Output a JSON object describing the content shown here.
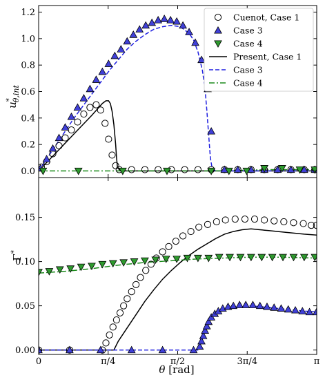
{
  "chart_data": {
    "type": "line",
    "xlabel": "θ [rad]",
    "x_ticks": [
      {
        "value": 0,
        "label": "0"
      },
      {
        "value": 0.7854,
        "label": "π/4"
      },
      {
        "value": 1.5708,
        "label": "π/2"
      },
      {
        "value": 2.3562,
        "label": "3π/4"
      },
      {
        "value": 3.1416,
        "label": "π"
      }
    ],
    "xlim": [
      0,
      3.1416
    ],
    "legend": {
      "placement": "top-right",
      "entries": [
        {
          "label": "Cuenot, Case 1",
          "marker": "circle-open"
        },
        {
          "label": "Case 3",
          "marker": "triangle-up"
        },
        {
          "label": "Case 4",
          "marker": "triangle-down"
        },
        {
          "label": "Present, Case 1",
          "line": "solid"
        },
        {
          "label": "Case 3",
          "line": "dashed"
        },
        {
          "label": "Case 4",
          "line": "dashdot"
        }
      ]
    },
    "colors": {
      "case1": "#000000",
      "case3_line": "#1f1fe0",
      "case3_marker": "#4040d8",
      "case4_line": "#1a8a1a",
      "case4_marker": "#2e9a2e"
    },
    "panels": [
      {
        "id": "top",
        "ylabel": "u*θ,int",
        "ylim": [
          -0.05,
          1.25
        ],
        "y_ticks": [
          0.0,
          0.2,
          0.4,
          0.6,
          0.8,
          1.0,
          1.2
        ],
        "y_tick_labels": [
          "0.0",
          "0.2",
          "0.4",
          "0.6",
          "0.8",
          "1.0",
          "1.2"
        ],
        "series": [
          {
            "name": "Cuenot, Case 1",
            "kind": "marker",
            "marker": "circle-open",
            "color": "#000000",
            "x": [
              0.03,
              0.09,
              0.16,
              0.23,
              0.3,
              0.37,
              0.44,
              0.51,
              0.58,
              0.65,
              0.7,
              0.75,
              0.79,
              0.83,
              0.87,
              0.91,
              1.05,
              1.2,
              1.35,
              1.5,
              1.65,
              1.8,
              1.95,
              2.1,
              2.25,
              2.4,
              2.55,
              2.7,
              2.85,
              3.0,
              3.12
            ],
            "y": [
              0.03,
              0.07,
              0.13,
              0.19,
              0.25,
              0.31,
              0.37,
              0.43,
              0.48,
              0.5,
              0.46,
              0.36,
              0.24,
              0.12,
              0.04,
              0.01,
              0.01,
              0.01,
              0.01,
              0.01,
              0.01,
              0.01,
              0.01,
              0.01,
              0.01,
              0.01,
              0.01,
              0.01,
              0.01,
              0.01,
              0.01
            ]
          },
          {
            "name": "Case 3",
            "kind": "marker",
            "marker": "triangle-up",
            "color": "#4040d8",
            "x": [
              0.02,
              0.09,
              0.16,
              0.23,
              0.3,
              0.37,
              0.44,
              0.51,
              0.58,
              0.65,
              0.72,
              0.79,
              0.86,
              0.93,
              1.0,
              1.07,
              1.14,
              1.21,
              1.28,
              1.35,
              1.42,
              1.49,
              1.56,
              1.63,
              1.7,
              1.77,
              1.84,
              1.91,
              1.95,
              2.1,
              2.25,
              2.4,
              2.55,
              2.7,
              2.85,
              3.0,
              3.12
            ],
            "y": [
              0.02,
              0.09,
              0.17,
              0.25,
              0.33,
              0.41,
              0.48,
              0.55,
              0.62,
              0.69,
              0.75,
              0.81,
              0.87,
              0.92,
              0.98,
              1.03,
              1.07,
              1.1,
              1.12,
              1.14,
              1.15,
              1.14,
              1.13,
              1.1,
              1.05,
              0.97,
              0.84,
              0.62,
              0.3,
              0.01,
              0.01,
              0.01,
              0.01,
              0.01,
              0.01,
              0.01,
              0.01
            ]
          },
          {
            "name": "Case 4",
            "kind": "marker",
            "marker": "triangle-down",
            "color": "#2e9a2e",
            "x": [
              0.05,
              0.45,
              0.95,
              1.45,
              1.95,
              2.15,
              2.35,
              2.55,
              2.75,
              2.95,
              3.12
            ],
            "y": [
              0.0,
              0.0,
              0.0,
              0.0,
              0.0,
              0.0,
              0.0,
              0.02,
              0.02,
              0.01,
              0.01
            ]
          },
          {
            "name": "Present, Case 1",
            "kind": "line",
            "dash": "solid",
            "color": "#000000",
            "x": [
              0.0,
              0.1,
              0.2,
              0.3,
              0.4,
              0.5,
              0.6,
              0.68,
              0.72,
              0.76,
              0.79,
              0.81,
              0.83,
              0.85,
              0.87,
              0.88,
              0.89,
              0.92,
              1.2,
              1.6,
              2.0,
              2.4,
              2.8,
              3.1416
            ],
            "y": [
              0.0,
              0.07,
              0.14,
              0.21,
              0.28,
              0.35,
              0.42,
              0.48,
              0.51,
              0.53,
              0.53,
              0.51,
              0.45,
              0.35,
              0.2,
              0.1,
              0.03,
              0.0,
              0.0,
              0.0,
              0.0,
              0.0,
              0.0,
              0.0
            ]
          },
          {
            "name": "Case 3",
            "kind": "line",
            "dash": "dashed",
            "color": "#1f1fe0",
            "x": [
              0.0,
              0.1,
              0.2,
              0.3,
              0.4,
              0.5,
              0.6,
              0.7,
              0.8,
              0.9,
              1.0,
              1.1,
              1.2,
              1.3,
              1.4,
              1.5,
              1.6,
              1.7,
              1.75,
              1.8,
              1.85,
              1.88,
              1.9,
              1.92,
              1.94,
              1.96,
              2.0,
              2.5,
              3.1416
            ],
            "y": [
              0.0,
              0.1,
              0.2,
              0.3,
              0.4,
              0.49,
              0.58,
              0.67,
              0.76,
              0.84,
              0.92,
              0.98,
              1.03,
              1.07,
              1.09,
              1.1,
              1.09,
              1.04,
              0.99,
              0.9,
              0.76,
              0.62,
              0.46,
              0.28,
              0.1,
              0.02,
              0.0,
              0.0,
              0.0
            ]
          },
          {
            "name": "Case 4",
            "kind": "line",
            "dash": "dashdot",
            "color": "#1a8a1a",
            "x": [
              0.0,
              1.0,
              2.0,
              2.3,
              2.6,
              3.1416
            ],
            "y": [
              0.0,
              0.0,
              0.0,
              0.005,
              0.01,
              0.01
            ]
          }
        ]
      },
      {
        "id": "bottom",
        "ylabel": "Γ*",
        "ylim": [
          -0.005,
          0.195
        ],
        "y_ticks": [
          0.0,
          0.05,
          0.1,
          0.15
        ],
        "y_tick_labels": [
          "0.00",
          "0.05",
          "0.10",
          "0.15"
        ],
        "series": [
          {
            "name": "Cuenot, Case 1",
            "kind": "marker",
            "marker": "circle-open",
            "color": "#000000",
            "x": [
              0.0,
              0.35,
              0.72,
              0.76,
              0.8,
              0.84,
              0.88,
              0.92,
              0.96,
              1.0,
              1.05,
              1.1,
              1.15,
              1.21,
              1.27,
              1.33,
              1.4,
              1.47,
              1.55,
              1.63,
              1.72,
              1.81,
              1.91,
              2.01,
              2.11,
              2.22,
              2.33,
              2.44,
              2.55,
              2.66,
              2.77,
              2.88,
              2.99,
              3.08,
              3.14
            ],
            "y": [
              0.0,
              0.0,
              0.0,
              0.008,
              0.017,
              0.026,
              0.034,
              0.042,
              0.05,
              0.058,
              0.066,
              0.074,
              0.082,
              0.09,
              0.097,
              0.104,
              0.111,
              0.117,
              0.123,
              0.129,
              0.134,
              0.139,
              0.142,
              0.145,
              0.147,
              0.148,
              0.148,
              0.148,
              0.147,
              0.146,
              0.145,
              0.144,
              0.143,
              0.141,
              0.141
            ]
          },
          {
            "name": "Case 3",
            "kind": "marker",
            "marker": "triangle-up",
            "color": "#4040d8",
            "x": [
              0.0,
              0.35,
              0.7,
              1.05,
              1.4,
              1.75,
              1.82,
              1.84,
              1.86,
              1.88,
              1.9,
              1.92,
              1.95,
              1.99,
              2.03,
              2.08,
              2.14,
              2.2,
              2.27,
              2.34,
              2.42,
              2.5,
              2.58,
              2.66,
              2.74,
              2.82,
              2.9,
              2.98,
              3.06,
              3.14
            ],
            "y": [
              0.0,
              0.0,
              0.0,
              0.0,
              0.0,
              0.0,
              0.004,
              0.01,
              0.016,
              0.022,
              0.027,
              0.032,
              0.037,
              0.041,
              0.044,
              0.047,
              0.049,
              0.05,
              0.051,
              0.051,
              0.051,
              0.05,
              0.049,
              0.048,
              0.047,
              0.046,
              0.045,
              0.044,
              0.043,
              0.043
            ]
          },
          {
            "name": "Case 4",
            "kind": "marker",
            "marker": "triangle-down",
            "color": "#2e9a2e",
            "x": [
              0.0,
              0.12,
              0.24,
              0.36,
              0.48,
              0.6,
              0.72,
              0.84,
              0.96,
              1.08,
              1.2,
              1.32,
              1.44,
              1.56,
              1.68,
              1.8,
              1.92,
              2.04,
              2.16,
              2.28,
              2.4,
              2.52,
              2.64,
              2.76,
              2.88,
              3.0,
              3.12
            ],
            "y": [
              0.088,
              0.089,
              0.091,
              0.092,
              0.094,
              0.095,
              0.097,
              0.098,
              0.099,
              0.1,
              0.101,
              0.102,
              0.103,
              0.103,
              0.104,
              0.104,
              0.104,
              0.105,
              0.105,
              0.105,
              0.105,
              0.105,
              0.105,
              0.105,
              0.105,
              0.105,
              0.105
            ]
          },
          {
            "name": "Present, Case 1",
            "kind": "line",
            "dash": "solid",
            "color": "#000000",
            "x": [
              0.0,
              0.5,
              0.85,
              0.9,
              1.0,
              1.1,
              1.2,
              1.3,
              1.4,
              1.5,
              1.6,
              1.7,
              1.8,
              1.9,
              2.0,
              2.1,
              2.2,
              2.3,
              2.4,
              2.5,
              2.6,
              2.8,
              3.0,
              3.1416
            ],
            "y": [
              0.0,
              0.0,
              0.0,
              0.01,
              0.025,
              0.04,
              0.055,
              0.068,
              0.08,
              0.09,
              0.099,
              0.107,
              0.114,
              0.12,
              0.126,
              0.131,
              0.134,
              0.136,
              0.137,
              0.136,
              0.135,
              0.133,
              0.131,
              0.13
            ]
          },
          {
            "name": "Case 3",
            "kind": "line",
            "dash": "dashed",
            "color": "#1f1fe0",
            "x": [
              0.0,
              1.0,
              1.8,
              1.82,
              1.85,
              1.88,
              1.92,
              1.96,
              2.0,
              2.05,
              2.1,
              2.2,
              2.3,
              2.4,
              2.5,
              2.6,
              2.8,
              3.0,
              3.1416
            ],
            "y": [
              0.0,
              0.0,
              0.0,
              0.004,
              0.013,
              0.022,
              0.031,
              0.038,
              0.042,
              0.045,
              0.047,
              0.049,
              0.05,
              0.05,
              0.049,
              0.048,
              0.046,
              0.044,
              0.043
            ]
          },
          {
            "name": "Case 4",
            "kind": "line",
            "dash": "dashdot",
            "color": "#1a8a1a",
            "x": [
              0.0,
              0.3,
              0.6,
              0.9,
              1.2,
              1.5,
              1.8,
              2.1,
              2.4,
              2.7,
              3.1416
            ],
            "y": [
              0.087,
              0.089,
              0.092,
              0.096,
              0.099,
              0.101,
              0.103,
              0.104,
              0.105,
              0.105,
              0.104
            ]
          }
        ]
      }
    ]
  }
}
